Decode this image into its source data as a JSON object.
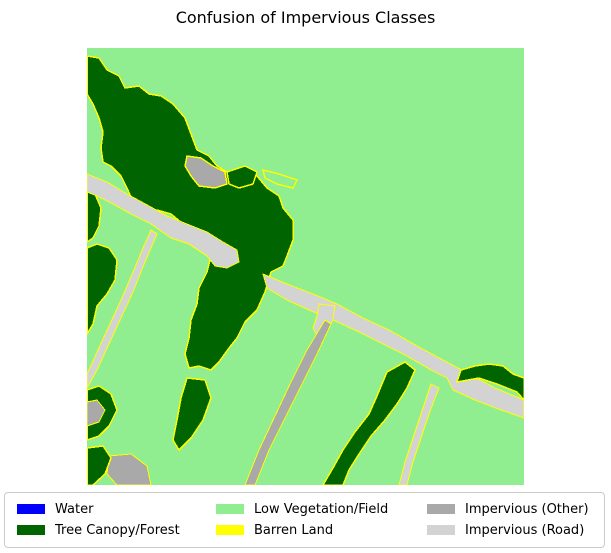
{
  "title": "Confusion of Impervious Classes",
  "legend": [
    {
      "label": "Water",
      "color": "#0000ff"
    },
    {
      "label": "Tree Canopy/Forest",
      "color": "#006400"
    },
    {
      "label": "Low Vegetation/Field",
      "color": "#90ee90"
    },
    {
      "label": "Barren Land",
      "color": "#ffff00"
    },
    {
      "label": "Impervious (Other)",
      "color": "#a9a9a9"
    },
    {
      "label": "Impervious (Road)",
      "color": "#d3d3d3"
    }
  ]
}
